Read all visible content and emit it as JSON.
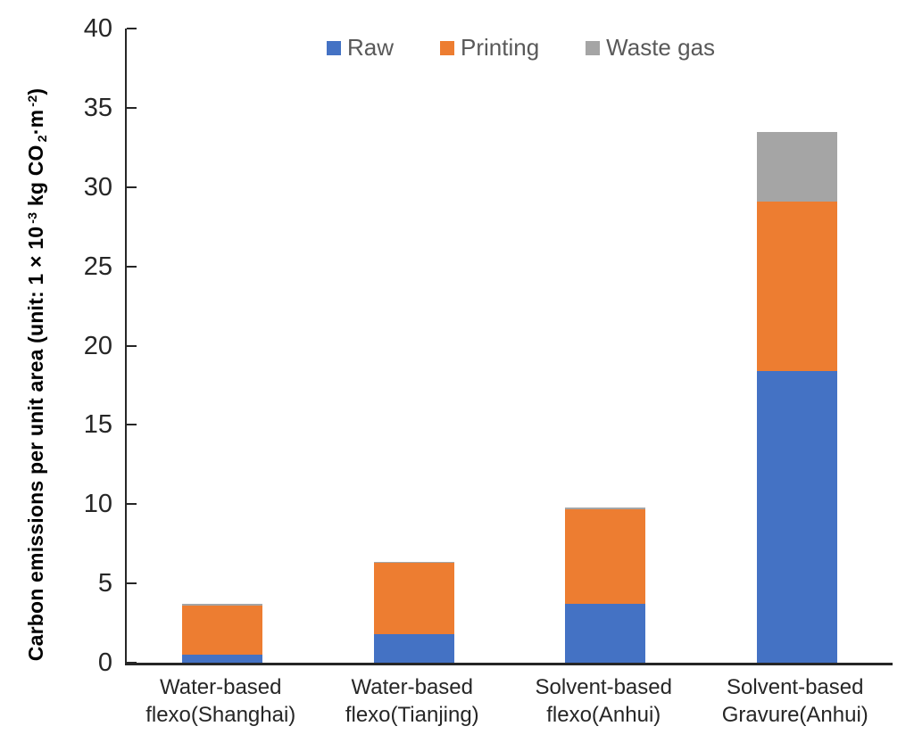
{
  "figure": {
    "background": "#ffffff"
  },
  "chart_data": {
    "type": "bar",
    "stacked": true,
    "title": "",
    "categories": [
      [
        "Water-based",
        "flexo(Shanghai)"
      ],
      [
        "Water-based",
        "flexo(Tianjing)"
      ],
      [
        "Solvent-based",
        "flexo(Anhui)"
      ],
      [
        "Solvent-based",
        "Gravure(Anhui)"
      ]
    ],
    "series": [
      {
        "name": "Raw",
        "color": "#4472C4",
        "values": [
          0.5,
          1.8,
          3.7,
          18.4
        ]
      },
      {
        "name": "Printing",
        "color": "#ED7D31",
        "values": [
          3.1,
          4.5,
          6.0,
          10.7
        ]
      },
      {
        "name": "Waste gas",
        "color": "#A5A5A5",
        "values": [
          0.1,
          0.05,
          0.1,
          4.4
        ]
      }
    ],
    "totals": [
      3.7,
      6.35,
      9.8,
      33.5
    ],
    "ylabel_plain": "Carbon emissions per unit area (unit: 1 × 10⁻³ kg CO₂·m⁻²)",
    "ylabel_parts": [
      {
        "text": "Carbon emissions per unit area (unit: 1 × 10"
      },
      {
        "text": "-3",
        "style": "sup"
      },
      {
        "text": " kg CO"
      },
      {
        "text": "2",
        "style": "sub"
      },
      {
        "text": "·m"
      },
      {
        "text": "-2",
        "style": "sup"
      },
      {
        "text": ")"
      }
    ],
    "xlabel": "",
    "ylim": [
      0,
      40
    ],
    "ytick_step": 5,
    "ytick_labels": [
      "0",
      "5",
      "10",
      "15",
      "20",
      "25",
      "30",
      "35",
      "40"
    ],
    "legend_position": "top",
    "grid": false,
    "axis_color": "#262626",
    "tick_label_color": "#262626",
    "legend_text_color": "#595959"
  }
}
